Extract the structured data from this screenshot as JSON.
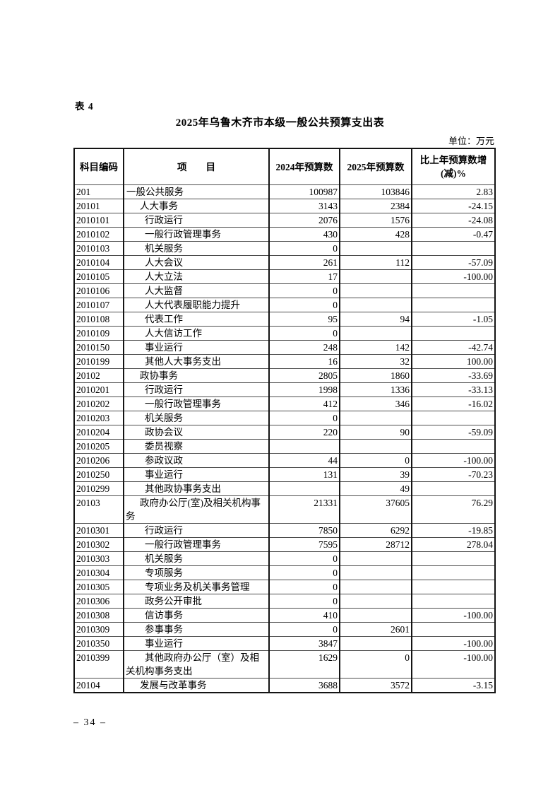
{
  "page": {
    "table_label": "表 4",
    "title": "2025年乌鲁木齐市本级一般公共预算支出表",
    "unit_label": "单位：万元",
    "page_number": "– 34 –"
  },
  "table": {
    "columns": {
      "code": "科目编码",
      "item": "项　　目",
      "y2024": "2024年预算数",
      "y2025": "2025年预算数",
      "pct": "比上年预算数增\n(减)%"
    },
    "rows": [
      {
        "code": "201",
        "level": 1,
        "name": "一般公共服务",
        "y2024": "100987",
        "y2025": "103846",
        "pct": "2.83"
      },
      {
        "code": "20101",
        "level": 2,
        "name": "人大事务",
        "y2024": "3143",
        "y2025": "2384",
        "pct": "-24.15"
      },
      {
        "code": "2010101",
        "level": 3,
        "name": "行政运行",
        "y2024": "2076",
        "y2025": "1576",
        "pct": "-24.08"
      },
      {
        "code": "2010102",
        "level": 3,
        "name": "一般行政管理事务",
        "y2024": "430",
        "y2025": "428",
        "pct": "-0.47"
      },
      {
        "code": "2010103",
        "level": 3,
        "name": "机关服务",
        "y2024": "0",
        "y2025": "",
        "pct": ""
      },
      {
        "code": "2010104",
        "level": 3,
        "name": "人大会议",
        "y2024": "261",
        "y2025": "112",
        "pct": "-57.09"
      },
      {
        "code": "2010105",
        "level": 3,
        "name": "人大立法",
        "y2024": "17",
        "y2025": "",
        "pct": "-100.00"
      },
      {
        "code": "2010106",
        "level": 3,
        "name": "人大监督",
        "y2024": "0",
        "y2025": "",
        "pct": ""
      },
      {
        "code": "2010107",
        "level": 3,
        "name": "人大代表履职能力提升",
        "y2024": "0",
        "y2025": "",
        "pct": ""
      },
      {
        "code": "2010108",
        "level": 3,
        "name": "代表工作",
        "y2024": "95",
        "y2025": "94",
        "pct": "-1.05"
      },
      {
        "code": "2010109",
        "level": 3,
        "name": "人大信访工作",
        "y2024": "0",
        "y2025": "",
        "pct": ""
      },
      {
        "code": "2010150",
        "level": 3,
        "name": "事业运行",
        "y2024": "248",
        "y2025": "142",
        "pct": "-42.74"
      },
      {
        "code": "2010199",
        "level": 3,
        "name": "其他人大事务支出",
        "y2024": "16",
        "y2025": "32",
        "pct": "100.00"
      },
      {
        "code": "20102",
        "level": 2,
        "name": "政协事务",
        "y2024": "2805",
        "y2025": "1860",
        "pct": "-33.69"
      },
      {
        "code": "2010201",
        "level": 3,
        "name": "行政运行",
        "y2024": "1998",
        "y2025": "1336",
        "pct": "-33.13"
      },
      {
        "code": "2010202",
        "level": 3,
        "name": "一般行政管理事务",
        "y2024": "412",
        "y2025": "346",
        "pct": "-16.02"
      },
      {
        "code": "2010203",
        "level": 3,
        "name": "机关服务",
        "y2024": "0",
        "y2025": "",
        "pct": ""
      },
      {
        "code": "2010204",
        "level": 3,
        "name": "政协会议",
        "y2024": "220",
        "y2025": "90",
        "pct": "-59.09"
      },
      {
        "code": "2010205",
        "level": 3,
        "name": "委员视察",
        "y2024": "",
        "y2025": "",
        "pct": ""
      },
      {
        "code": "2010206",
        "level": 3,
        "name": "参政议政",
        "y2024": "44",
        "y2025": "0",
        "pct": "-100.00"
      },
      {
        "code": "2010250",
        "level": 3,
        "name": "事业运行",
        "y2024": "131",
        "y2025": "39",
        "pct": "-70.23"
      },
      {
        "code": "2010299",
        "level": 3,
        "name": "其他政协事务支出",
        "y2024": "",
        "y2025": "49",
        "pct": ""
      },
      {
        "code": "20103",
        "level": 2,
        "name": "政府办公厅(室)及相关机构事务",
        "y2024": "21331",
        "y2025": "37605",
        "pct": "76.29"
      },
      {
        "code": "2010301",
        "level": 3,
        "name": "行政运行",
        "y2024": "7850",
        "y2025": "6292",
        "pct": "-19.85"
      },
      {
        "code": "2010302",
        "level": 3,
        "name": "一般行政管理事务",
        "y2024": "7595",
        "y2025": "28712",
        "pct": "278.04"
      },
      {
        "code": "2010303",
        "level": 3,
        "name": "机关服务",
        "y2024": "0",
        "y2025": "",
        "pct": ""
      },
      {
        "code": "2010304",
        "level": 3,
        "name": "专项服务",
        "y2024": "0",
        "y2025": "",
        "pct": ""
      },
      {
        "code": "2010305",
        "level": 3,
        "name": "专项业务及机关事务管理",
        "y2024": "0",
        "y2025": "",
        "pct": ""
      },
      {
        "code": "2010306",
        "level": 3,
        "name": "政务公开审批",
        "y2024": "0",
        "y2025": "",
        "pct": ""
      },
      {
        "code": "2010308",
        "level": 3,
        "name": "信访事务",
        "y2024": "410",
        "y2025": "",
        "pct": "-100.00"
      },
      {
        "code": "2010309",
        "level": 3,
        "name": "参事事务",
        "y2024": "0",
        "y2025": "2601",
        "pct": ""
      },
      {
        "code": "2010350",
        "level": 3,
        "name": "事业运行",
        "y2024": "3847",
        "y2025": "",
        "pct": "-100.00"
      },
      {
        "code": "2010399",
        "level": 3,
        "name": "其他政府办公厅（室）及相关机构事务支出",
        "y2024": "1629",
        "y2025": "0",
        "pct": "-100.00"
      },
      {
        "code": "20104",
        "level": 2,
        "name": "发展与改革事务",
        "y2024": "3688",
        "y2025": "3572",
        "pct": "-3.15"
      }
    ]
  }
}
